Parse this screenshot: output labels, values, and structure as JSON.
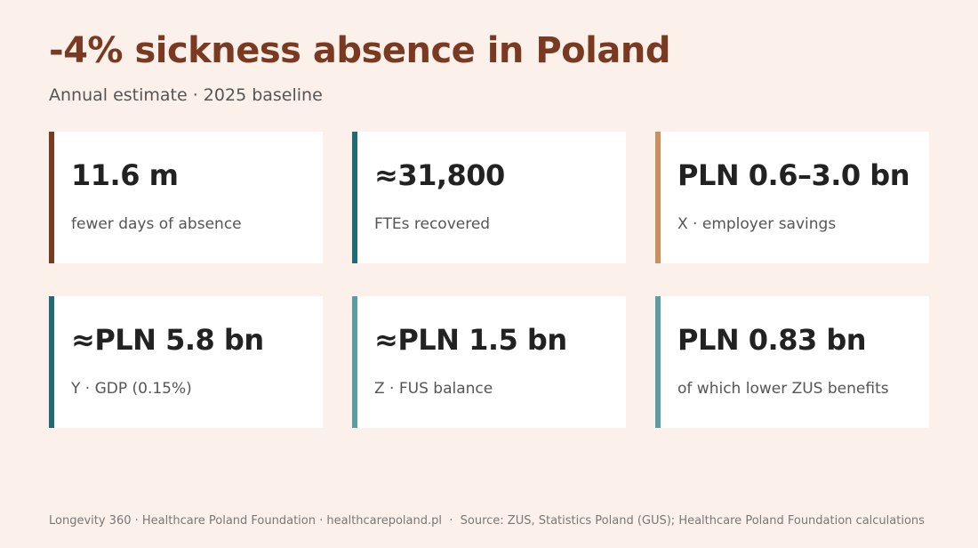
{
  "header": {
    "title": "-4% sickness absence in Poland",
    "subtitle": "Annual estimate · 2025 baseline"
  },
  "cards": [
    {
      "value": "11.6 m",
      "label": "fewer days of absence",
      "color": "#7a3a22"
    },
    {
      "value": "≈31,800",
      "label": "FTEs recovered",
      "color": "#1f6b73"
    },
    {
      "value": "PLN 0.6–3.0 bn",
      "label": "X · employer savings",
      "color": "#c98f5f"
    },
    {
      "value": "≈PLN 5.8 bn",
      "label": "Y · GDP (0.15%)",
      "color": "#1f6b73"
    },
    {
      "value": "≈PLN 1.5 bn",
      "label": "Z · FUS balance",
      "color": "#5a9ea3"
    },
    {
      "value": "PLN 0.83 bn",
      "label": "of which lower ZUS benefits",
      "color": "#5a9ea3"
    }
  ],
  "footer": "Longevity 360 · Healthcare Poland Foundation · healthcarepoland.pl  ·  Source: ZUS, Statistics Poland (GUS); Healthcare Poland Foundation calculations"
}
